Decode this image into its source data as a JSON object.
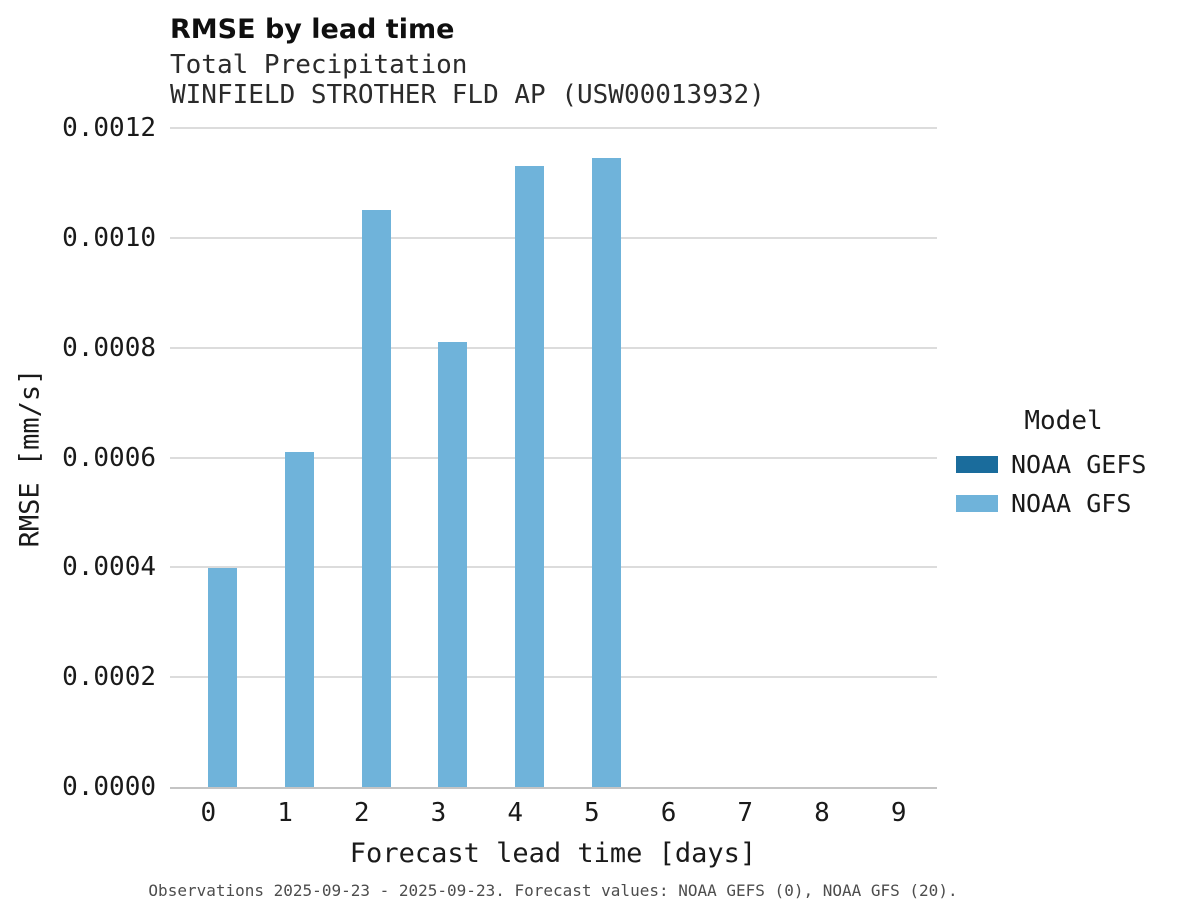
{
  "chart_data": {
    "type": "bar",
    "title": "RMSE by lead time",
    "subtitle_lines": [
      "Total Precipitation",
      "WINFIELD STROTHER FLD AP (USW00013932)"
    ],
    "caption": "Observations 2025-09-23 - 2025-09-23. Forecast values: NOAA GEFS (0), NOAA GFS (20).",
    "xlabel": "Forecast lead time [days]",
    "ylabel": "RMSE [mm/s]",
    "categories": [
      "0",
      "1",
      "2",
      "3",
      "4",
      "5",
      "6",
      "7",
      "8",
      "9"
    ],
    "series": [
      {
        "name": "NOAA GEFS",
        "color": "#1a6c9c",
        "values": [
          0,
          0,
          0,
          0,
          0,
          0,
          0,
          0,
          0,
          0
        ]
      },
      {
        "name": "NOAA GFS",
        "color": "#6fb3da",
        "values": [
          0.000398,
          0.00061,
          0.00105,
          0.00081,
          0.00113,
          0.001145,
          0,
          0,
          0,
          0
        ]
      }
    ],
    "ylim": [
      0,
      0.0012
    ],
    "yticks": [
      0,
      0.0002,
      0.0004,
      0.0006,
      0.0008,
      0.001,
      0.0012
    ],
    "ytick_labels": [
      "0.0000",
      "0.0002",
      "0.0004",
      "0.0006",
      "0.0008",
      "0.0010",
      "0.0012"
    ],
    "grid": true,
    "legend_title": "Model",
    "legend_position": "right",
    "colors": {
      "grid": "#dcdcdc",
      "axis": "#c4c4c4",
      "background": "#ffffff"
    }
  }
}
